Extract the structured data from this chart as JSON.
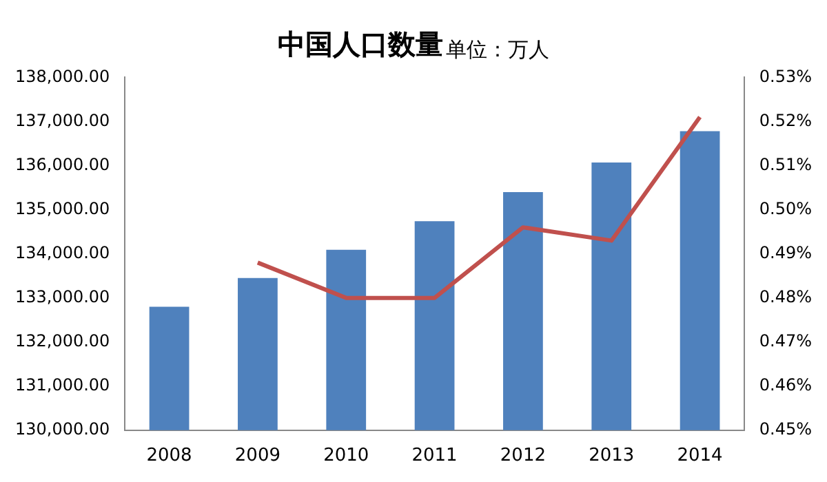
{
  "chart_data": {
    "type": "bar",
    "title": "中国人口数量",
    "subtitle": "单位：万人",
    "categories": [
      "2008",
      "2009",
      "2010",
      "2011",
      "2012",
      "2013",
      "2014"
    ],
    "series": [
      {
        "color": "#4f81bd",
        "values": [
          132800,
          133450,
          134090,
          134740,
          135400,
          136070,
          136780
        ]
      },
      {
        "type": "line",
        "axis": "y2",
        "color": "#c0504d",
        "values": [
          null,
          0.488,
          0.48,
          0.48,
          0.496,
          0.493,
          0.521
        ]
      }
    ],
    "ylim": [
      130000,
      138000
    ],
    "yticks": [
      {
        "value": 130000,
        "label": "130,000.00"
      },
      {
        "value": 131000,
        "label": "131,000.00"
      },
      {
        "value": 132000,
        "label": "132,000.00"
      },
      {
        "value": 133000,
        "label": "133,000.00"
      },
      {
        "value": 134000,
        "label": "134,000.00"
      },
      {
        "value": 135000,
        "label": "135,000.00"
      },
      {
        "value": 136000,
        "label": "136,000.00"
      },
      {
        "value": 137000,
        "label": "137,000.00"
      },
      {
        "value": 138000,
        "label": "138,000.00"
      }
    ],
    "y2lim": [
      0.45,
      0.53
    ],
    "y2ticks": [
      {
        "value": 0.45,
        "label": "0.45%"
      },
      {
        "value": 0.46,
        "label": "0.46%"
      },
      {
        "value": 0.47,
        "label": "0.47%"
      },
      {
        "value": 0.48,
        "label": "0.48%"
      },
      {
        "value": 0.49,
        "label": "0.49%"
      },
      {
        "value": 0.5,
        "label": "0.50%"
      },
      {
        "value": 0.51,
        "label": "0.51%"
      },
      {
        "value": 0.52,
        "label": "0.52%"
      },
      {
        "value": 0.53,
        "label": "0.53%"
      }
    ],
    "marker": "none",
    "line_style": "solid"
  }
}
